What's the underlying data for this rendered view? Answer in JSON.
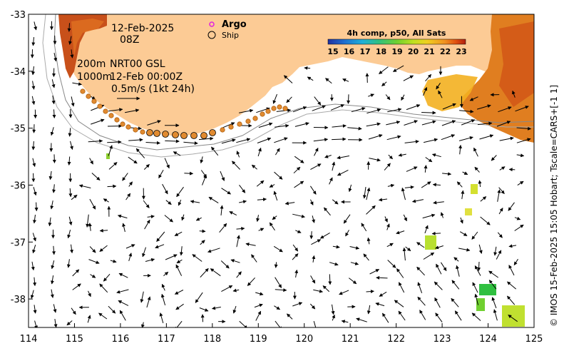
{
  "annotations": {
    "date": "12-Feb-2025",
    "hour": "08Z",
    "depth_200": "200m",
    "depth_1000": "1000m",
    "product": "NRT00 GSL",
    "product_time": "12-Feb 00:00Z",
    "scale": "0.5m/s (1kt 24h)"
  },
  "legend": {
    "argo": "Argo",
    "ship": "Ship",
    "argo_color": "#e020e0"
  },
  "colorbar": {
    "title": "4h comp, p50, All Sats",
    "ticks": [
      "15",
      "16",
      "17",
      "18",
      "19",
      "20",
      "21",
      "22",
      "23"
    ],
    "colors": [
      "#2030a0",
      "#1f6fd0",
      "#1fb0d8",
      "#30c080",
      "#70d030",
      "#c0e020",
      "#f0d020",
      "#f09020",
      "#e05010",
      "#b02010"
    ]
  },
  "credit": "© IMOS 15-Feb-2025 15:05 Hobart; Tscale=CARS+[-1 1]",
  "axes": {
    "lon_ticks": [
      "114",
      "115",
      "116",
      "117",
      "118",
      "119",
      "120",
      "121",
      "122",
      "123",
      "124",
      "125"
    ],
    "lat_ticks": [
      "-33",
      "-34",
      "-35",
      "-36",
      "-37",
      "-38"
    ],
    "lon_range": [
      114,
      125
    ],
    "lat_range": [
      -38.5,
      -33
    ]
  },
  "colors": {
    "land": "#fccb95",
    "background": "#ffffff",
    "sst_hot": "#d8601c",
    "sst_mid": "#f0a020",
    "sst_green": "#30c040"
  }
}
